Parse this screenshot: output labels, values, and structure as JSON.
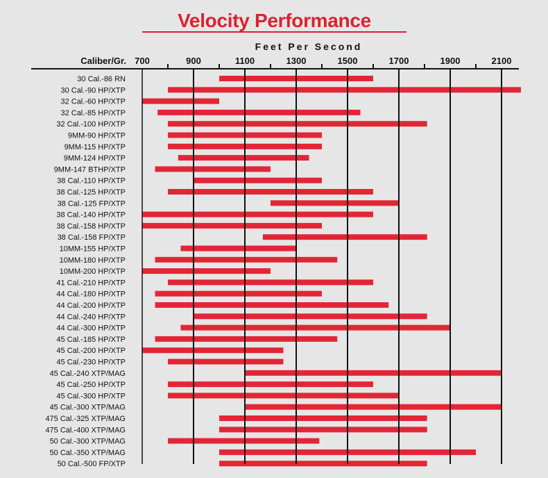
{
  "chart_data": {
    "type": "bar",
    "orientation": "horizontal-range",
    "title": "Velocity Performance",
    "xlabel": "Feet Per Second",
    "ylabel": "Caliber/Gr.",
    "xlim": [
      700,
      2200
    ],
    "ticks": [
      700,
      900,
      1100,
      1300,
      1500,
      1700,
      1900,
      2100
    ],
    "gridlines": [
      900,
      1100,
      1300,
      1500,
      1700,
      1900,
      2100
    ],
    "colors": {
      "bar": "#e32636",
      "title": "#d9232d",
      "axis": "#111111",
      "background": "#e7e6e6"
    },
    "series": [
      {
        "name": "30 Cal.-86 RN",
        "min": 1000,
        "max": 1600
      },
      {
        "name": "30 Cal.-90 HP/XTP",
        "min": 800,
        "max": 2180
      },
      {
        "name": "32 Cal.-60 HP/XTP",
        "min": 700,
        "max": 1000
      },
      {
        "name": "32 Cal.-85 HP/XTP",
        "min": 760,
        "max": 1550
      },
      {
        "name": "32 Cal.-100 HP/XTP",
        "min": 800,
        "max": 1810
      },
      {
        "name": "9MM-90 HP/XTP",
        "min": 800,
        "max": 1400
      },
      {
        "name": "9MM-115 HP/XTP",
        "min": 800,
        "max": 1400
      },
      {
        "name": "9MM-124 HP/XTP",
        "min": 840,
        "max": 1350
      },
      {
        "name": "9MM-147 BTHP/XTP",
        "min": 750,
        "max": 1200
      },
      {
        "name": "38 Cal.-110 HP/XTP",
        "min": 900,
        "max": 1400
      },
      {
        "name": "38 Cal.-125 HP/XTP",
        "min": 800,
        "max": 1600
      },
      {
        "name": "38 Cal.-125 FP/XTP",
        "min": 1200,
        "max": 1700
      },
      {
        "name": "38 Cal.-140 HP/XTP",
        "min": 700,
        "max": 1600
      },
      {
        "name": "38 Cal.-158 HP/XTP",
        "min": 700,
        "max": 1400
      },
      {
        "name": "38 Cal.-158 FP/XTP",
        "min": 1170,
        "max": 1810
      },
      {
        "name": "10MM-155 HP/XTP",
        "min": 850,
        "max": 1300
      },
      {
        "name": "10MM-180 HP/XTP",
        "min": 750,
        "max": 1460
      },
      {
        "name": "10MM-200 HP/XTP",
        "min": 700,
        "max": 1200
      },
      {
        "name": "41 Cal.-210 HP/XTP",
        "min": 800,
        "max": 1600
      },
      {
        "name": "44 Cal.-180 HP/XTP",
        "min": 750,
        "max": 1400
      },
      {
        "name": "44 Cal.-200 HP/XTP",
        "min": 750,
        "max": 1660
      },
      {
        "name": "44 Cal.-240 HP/XTP",
        "min": 900,
        "max": 1810
      },
      {
        "name": "44 Cal.-300 HP/XTP",
        "min": 850,
        "max": 1900
      },
      {
        "name": "45 Cal.-185 HP/XTP",
        "min": 750,
        "max": 1460
      },
      {
        "name": "45 Cal.-200 HP/XTP",
        "min": 700,
        "max": 1250
      },
      {
        "name": "45 Cal.-230 HP/XTP",
        "min": 800,
        "max": 1250
      },
      {
        "name": "45 Cal.-240 XTP/MAG",
        "min": 1100,
        "max": 2100
      },
      {
        "name": "45 Cal.-250 HP/XTP",
        "min": 800,
        "max": 1600
      },
      {
        "name": "45 Cal.-300 HP/XTP",
        "min": 800,
        "max": 1700
      },
      {
        "name": "45 Cal.-300 XTP/MAG",
        "min": 1100,
        "max": 2100
      },
      {
        "name": "475 Cal.-325 XTP/MAG",
        "min": 1000,
        "max": 1810
      },
      {
        "name": "475 Cal.-400 XTP/MAG",
        "min": 1000,
        "max": 1810
      },
      {
        "name": "50 Cal.-300 XTP/MAG",
        "min": 800,
        "max": 1390
      },
      {
        "name": "50 Cal.-350 XTP/MAG",
        "min": 1000,
        "max": 2000
      },
      {
        "name": "50 Cal.-500 FP/XTP",
        "min": 1000,
        "max": 1810
      }
    ]
  }
}
